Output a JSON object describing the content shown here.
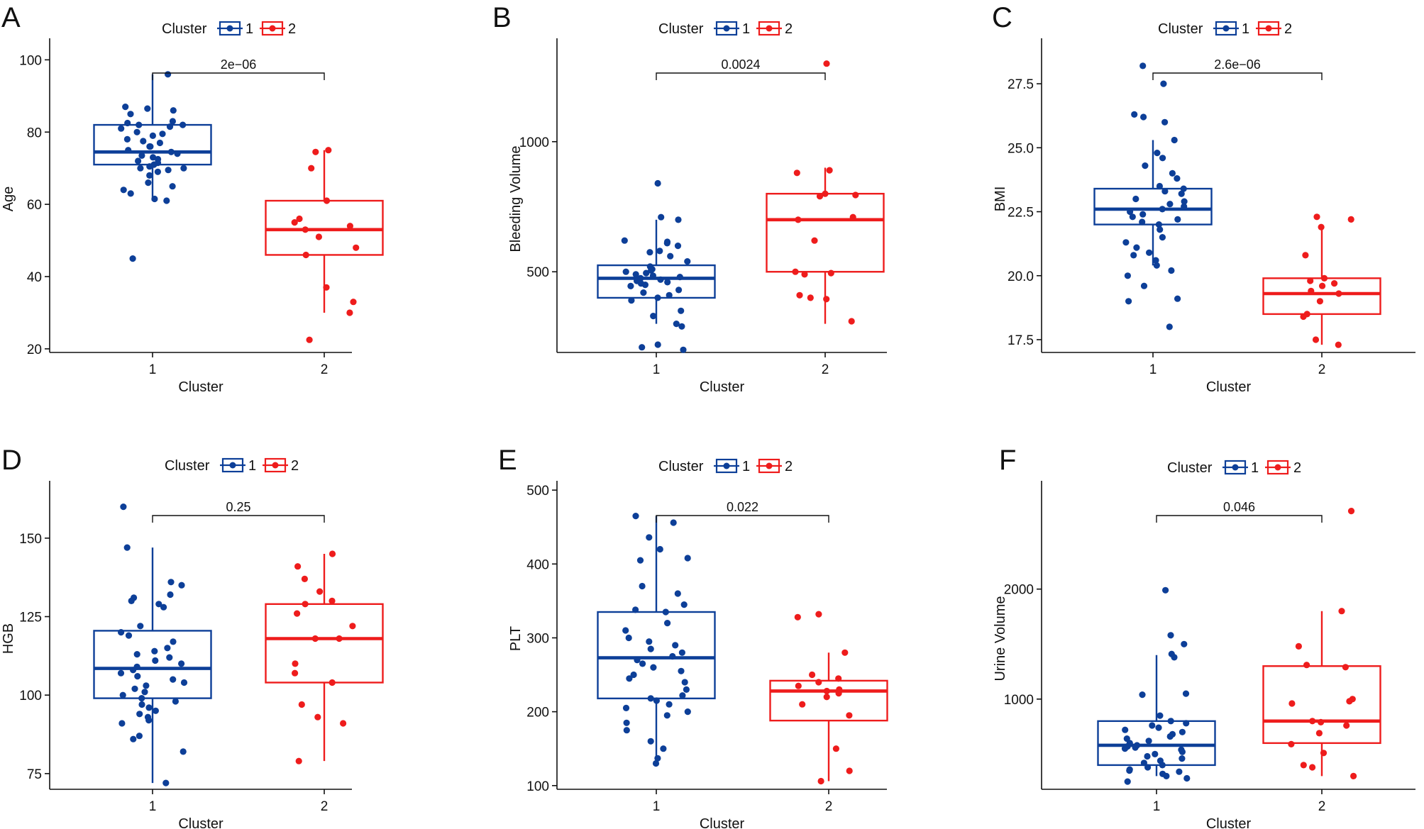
{
  "figure": {
    "colors": {
      "cluster1": "#0d3f98",
      "cluster2": "#ee1c1c",
      "axis": "#111111"
    },
    "legend": {
      "title": "Cluster",
      "labels": [
        "1",
        "2"
      ]
    }
  },
  "chart_data": [
    {
      "panel": "A",
      "type": "box",
      "title": "",
      "xlabel": "Cluster",
      "ylabel": "Age",
      "categories": [
        "1",
        "2"
      ],
      "ylim": [
        19,
        104
      ],
      "yticks": [
        20,
        40,
        60,
        80,
        100
      ],
      "pvalue": "2e−06",
      "boxes": [
        {
          "q1": 71,
          "median": 74.5,
          "q3": 82,
          "whisker_low": 61,
          "whisker_high": 96
        },
        {
          "q1": 46,
          "median": 53,
          "q3": 61,
          "whisker_low": 30,
          "whisker_high": 75
        }
      ],
      "points": [
        [
          96,
          87,
          86.5,
          86,
          85,
          83,
          82.5,
          82,
          82,
          81.5,
          81,
          80,
          79.5,
          79,
          78,
          77.5,
          77,
          76,
          76,
          75,
          74.5,
          74,
          73.5,
          73,
          72.5,
          72,
          71.5,
          71,
          70.5,
          70,
          70,
          69.5,
          69,
          68,
          66,
          65,
          64,
          63,
          61.5,
          61,
          45
        ],
        [
          75,
          74.5,
          70,
          61,
          56,
          55,
          54,
          53,
          51,
          48,
          46,
          37,
          33,
          30,
          22.5
        ]
      ]
    },
    {
      "panel": "B",
      "type": "box",
      "title": "",
      "xlabel": "Cluster",
      "ylabel": "Bleeding Volume",
      "categories": [
        "1",
        "2"
      ],
      "ylim": [
        190,
        1370
      ],
      "yticks": [
        500,
        1000
      ],
      "pvalue": "0.0024",
      "boxes": [
        {
          "q1": 400,
          "median": 475,
          "q3": 525,
          "whisker_low": 300,
          "whisker_high": 700
        },
        {
          "q1": 500,
          "median": 700,
          "q3": 800,
          "whisker_low": 300,
          "whisker_high": 900
        }
      ],
      "points": [
        [
          840,
          710,
          700,
          620,
          615,
          610,
          600,
          580,
          575,
          560,
          540,
          520,
          510,
          505,
          500,
          495,
          490,
          485,
          480,
          475,
          470,
          465,
          460,
          455,
          450,
          445,
          430,
          420,
          410,
          400,
          390,
          350,
          330,
          300,
          290,
          220,
          210,
          200
        ],
        [
          1300,
          890,
          880,
          800,
          795,
          790,
          710,
          700,
          620,
          500,
          495,
          490,
          410,
          400,
          395,
          310
        ]
      ]
    },
    {
      "panel": "C",
      "type": "box",
      "title": "",
      "xlabel": "Cluster",
      "ylabel": "BMI",
      "categories": [
        "1",
        "2"
      ],
      "ylim": [
        17,
        29
      ],
      "yticks": [
        17.5,
        20.0,
        22.5,
        25.0,
        27.5
      ],
      "pvalue": "2.6e−06",
      "boxes": [
        {
          "q1": 22.0,
          "median": 22.6,
          "q3": 23.4,
          "whisker_low": 20.4,
          "whisker_high": 25.3
        },
        {
          "q1": 18.5,
          "median": 19.3,
          "q3": 19.9,
          "whisker_low": 17.3,
          "whisker_high": 21.9
        }
      ],
      "points": [
        [
          28.2,
          27.5,
          26.3,
          26.2,
          26.0,
          25.3,
          24.8,
          24.6,
          24.3,
          24.0,
          23.8,
          23.5,
          23.4,
          23.3,
          23.2,
          23.0,
          22.9,
          22.8,
          22.7,
          22.6,
          22.5,
          22.4,
          22.3,
          22.2,
          22.1,
          22.0,
          21.8,
          21.5,
          21.3,
          21.1,
          20.9,
          20.8,
          20.6,
          20.4,
          20.2,
          20.0,
          19.6,
          19.1,
          19.0,
          18.0
        ],
        [
          22.3,
          22.2,
          21.9,
          20.8,
          19.9,
          19.8,
          19.7,
          19.6,
          19.4,
          19.3,
          19.0,
          18.5,
          18.4,
          17.5,
          17.3
        ]
      ]
    },
    {
      "panel": "D",
      "type": "box",
      "title": "",
      "xlabel": "Cluster",
      "ylabel": "HGB",
      "categories": [
        "1",
        "2"
      ],
      "ylim": [
        70,
        166
      ],
      "yticks": [
        75,
        100,
        125,
        150
      ],
      "pvalue": "0.25",
      "boxes": [
        {
          "q1": 99,
          "median": 108.5,
          "q3": 120.5,
          "whisker_low": 72,
          "whisker_high": 147
        },
        {
          "q1": 104,
          "median": 118,
          "q3": 129,
          "whisker_low": 79,
          "whisker_high": 145
        }
      ],
      "points": [
        [
          160,
          147,
          136,
          135,
          132,
          131,
          130,
          129,
          128,
          122,
          120,
          119,
          117,
          115,
          114,
          113,
          112,
          111,
          110,
          109,
          108,
          107,
          106,
          105,
          104,
          103,
          102,
          101,
          100,
          99,
          98,
          97,
          96,
          95,
          94,
          93,
          92,
          91,
          87,
          86,
          82,
          72
        ],
        [
          145,
          141,
          137,
          133,
          130,
          129,
          126,
          122,
          118,
          118,
          110,
          107,
          104,
          97,
          93,
          91,
          79
        ]
      ]
    },
    {
      "panel": "E",
      "type": "box",
      "title": "",
      "xlabel": "Cluster",
      "ylabel": "PLT",
      "categories": [
        "1",
        "2"
      ],
      "ylim": [
        95,
        503
      ],
      "yticks": [
        100,
        200,
        300,
        400,
        500
      ],
      "pvalue": "0.022",
      "boxes": [
        {
          "q1": 218,
          "median": 273,
          "q3": 335,
          "whisker_low": 137,
          "whisker_high": 465
        },
        {
          "q1": 188,
          "median": 228,
          "q3": 242,
          "whisker_low": 106,
          "whisker_high": 280
        }
      ],
      "points": [
        [
          465,
          456,
          436,
          420,
          408,
          405,
          370,
          360,
          345,
          338,
          335,
          320,
          310,
          300,
          295,
          290,
          285,
          280,
          275,
          270,
          265,
          260,
          255,
          250,
          245,
          240,
          230,
          222,
          218,
          215,
          210,
          205,
          200,
          195,
          185,
          175,
          160,
          150,
          137,
          130
        ],
        [
          332,
          328,
          280,
          250,
          245,
          240,
          235,
          230,
          228,
          225,
          220,
          210,
          195,
          150,
          120,
          106
        ]
      ]
    },
    {
      "panel": "F",
      "type": "box",
      "title": "",
      "xlabel": "Cluster",
      "ylabel": "Urine Volume",
      "categories": [
        "1",
        "2"
      ],
      "ylim": [
        180,
        2920
      ],
      "yticks": [
        1000,
        2000
      ],
      "pvalue": "0.046",
      "boxes": [
        {
          "q1": 400,
          "median": 580,
          "q3": 800,
          "whisker_low": 300,
          "whisker_high": 1400
        },
        {
          "q1": 600,
          "median": 800,
          "q3": 1300,
          "whisker_low": 300,
          "whisker_high": 1800
        }
      ],
      "points": [
        [
          1990,
          1580,
          1500,
          1410,
          1380,
          1050,
          1040,
          850,
          800,
          780,
          760,
          740,
          720,
          700,
          680,
          660,
          640,
          620,
          600,
          580,
          570,
          560,
          550,
          540,
          520,
          500,
          480,
          460,
          440,
          420,
          400,
          380,
          360,
          350,
          340,
          320,
          300,
          280,
          250
        ],
        [
          2710,
          1800,
          1480,
          1310,
          1290,
          1000,
          980,
          960,
          800,
          790,
          760,
          690,
          590,
          510,
          400,
          380,
          300
        ]
      ]
    }
  ]
}
